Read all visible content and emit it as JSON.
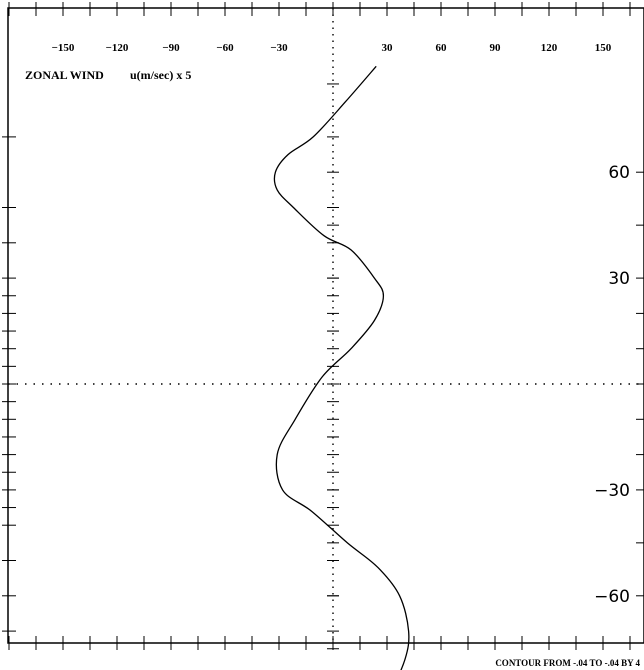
{
  "chart_data": {
    "type": "line",
    "title": "ZONAL WIND",
    "xlabel": "u(m/sec) x 5",
    "ylabel": "",
    "x_ticks": [
      -150,
      -120,
      -90,
      -60,
      -30,
      30,
      60,
      90,
      120,
      150
    ],
    "x_tick_labels": [
      "−150",
      "−120",
      "−90",
      "−60",
      "−30",
      "30",
      "60",
      "90",
      "120",
      "150"
    ],
    "y_ticks": [
      60,
      30,
      -30,
      -60
    ],
    "y_tick_labels": [
      "60",
      "30",
      "−30",
      "−60"
    ],
    "xlim": [
      -180,
      180
    ],
    "ylim": [
      -90,
      90
    ],
    "grid": false,
    "reference_lines": [
      "x=0 dotted",
      "y=0 dotted"
    ],
    "series": [
      {
        "x": [
          24,
          7,
          -11,
          -25,
          -32,
          -31,
          -22,
          -5,
          10,
          23,
          28,
          23,
          10,
          -6,
          -21,
          -31,
          -28,
          -12,
          8,
          25,
          37,
          42,
          40,
          31,
          25
        ],
        "y": [
          90,
          80,
          70,
          65,
          60,
          55,
          50,
          42,
          38,
          30,
          25,
          18,
          10,
          2,
          -10,
          -20,
          -30,
          -36,
          -45,
          -52,
          -60,
          -70,
          -78,
          -88,
          -90
        ]
      }
    ],
    "footer": "CONTOUR FROM -.04 TO -.04 BY 4"
  }
}
